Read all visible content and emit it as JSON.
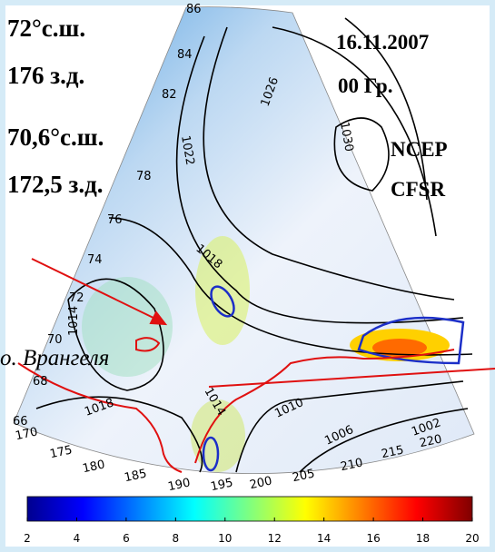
{
  "location_label": {
    "lat1": "72°с.ш.",
    "lon1": "176 з.д.",
    "lat2": "70,6°с.ш.",
    "lon2": "172,5 з.д."
  },
  "date_label": {
    "date": "16.11.2007",
    "time": "00 Гр."
  },
  "source_label": {
    "line1": "NCEP",
    "line2": "CFSR"
  },
  "island_label": "о. Врангеля",
  "map": {
    "latitude_labels": [
      86,
      84,
      82,
      78,
      76,
      74,
      72,
      70,
      68,
      66
    ],
    "longitude_labels": [
      170,
      175,
      180,
      185,
      190,
      195,
      200,
      205,
      210,
      215,
      220
    ],
    "isobar_labels": [
      1022,
      1026,
      1030,
      1018,
      1014,
      1014,
      1018,
      1010,
      1006,
      1002
    ]
  },
  "colorbar": {
    "lim": [
      2,
      20
    ],
    "ticks": [
      2,
      4,
      6,
      8,
      10,
      12,
      14,
      16,
      18,
      20
    ]
  }
}
